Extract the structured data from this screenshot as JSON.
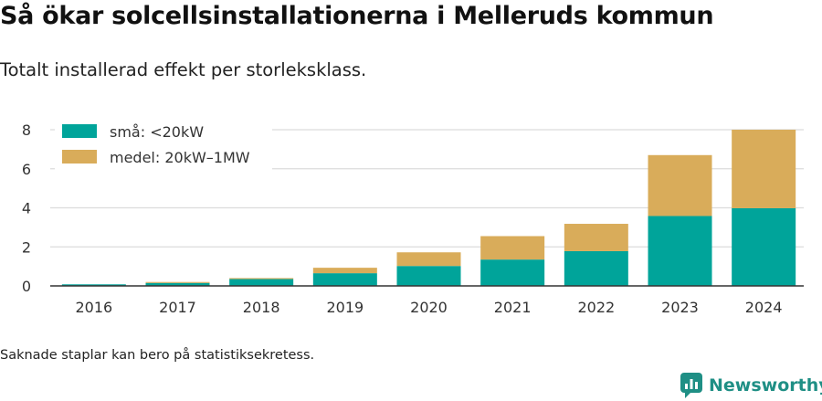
{
  "title": "Så ökar solcellsinstallationerna i Melleruds kommun",
  "subtitle": "Totalt installerad effekt per storleksklass.",
  "footnote": "Saknade staplar kan bero på statistiksekretess.",
  "brand": {
    "name": "Newsworthy",
    "icon": "newsworthy-logo-icon",
    "color": "#1f8f85"
  },
  "chart_data": {
    "type": "bar",
    "stacked": true,
    "categories": [
      "2016",
      "2017",
      "2018",
      "2019",
      "2020",
      "2021",
      "2022",
      "2023",
      "2024"
    ],
    "series": [
      {
        "name": "små: <20kW",
        "color": "#00a49a",
        "values": [
          0.08,
          0.15,
          0.35,
          0.65,
          1.02,
          1.35,
          1.78,
          3.58,
          3.98
        ]
      },
      {
        "name": "medel: 20kW–1MW",
        "color": "#d9ac5a",
        "values": [
          0.0,
          0.05,
          0.05,
          0.28,
          0.7,
          1.2,
          1.4,
          3.12,
          4.02
        ]
      }
    ],
    "yticks": [
      0,
      2,
      4,
      6,
      8
    ],
    "ylim": [
      0,
      8.4
    ],
    "grid": true,
    "legend_position": "top-left",
    "xlabel": "",
    "ylabel": ""
  }
}
